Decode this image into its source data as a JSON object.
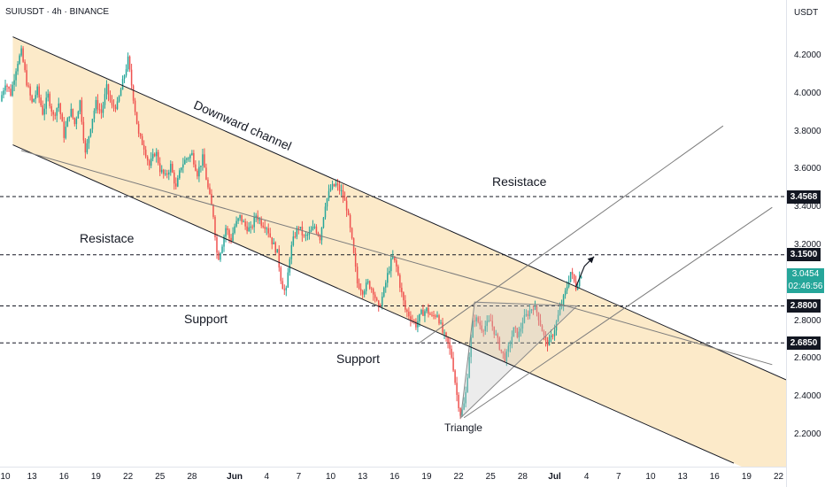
{
  "header": {
    "symbol_line": "SUIUSDT · 4h · BINANCE",
    "unit": "USDT"
  },
  "colors": {
    "up": "#26a69a",
    "down": "#ef5350",
    "channel_fill": "#fbe7c3",
    "level_tag_bg": "#131722",
    "price_tag_bg": "#26a69a"
  },
  "chart_data": {
    "type": "candlestick",
    "ylim": [
      2.08,
      4.42
    ],
    "yticks": [
      "4.2000",
      "4.0000",
      "3.8000",
      "3.6000",
      "3.4000",
      "3.2000",
      "3.0000",
      "2.8000",
      "2.6000",
      "2.4000",
      "2.2000"
    ],
    "ytick_values": [
      4.2,
      4.0,
      3.8,
      3.6,
      3.4,
      3.2,
      3.0,
      2.8,
      2.6,
      2.4,
      2.2
    ],
    "xticks": [
      {
        "label": "10",
        "d": 10
      },
      {
        "label": "13",
        "d": 13
      },
      {
        "label": "16",
        "d": 16
      },
      {
        "label": "19",
        "d": 19
      },
      {
        "label": "22",
        "d": 22
      },
      {
        "label": "25",
        "d": 25
      },
      {
        "label": "28",
        "d": 28
      },
      {
        "label": "Jun",
        "d": 32,
        "bold": true
      },
      {
        "label": "4",
        "d": 35
      },
      {
        "label": "7",
        "d": 38
      },
      {
        "label": "10",
        "d": 41
      },
      {
        "label": "13",
        "d": 44
      },
      {
        "label": "16",
        "d": 47
      },
      {
        "label": "19",
        "d": 50
      },
      {
        "label": "22",
        "d": 53
      },
      {
        "label": "25",
        "d": 56
      },
      {
        "label": "28",
        "d": 59
      },
      {
        "label": "Jul",
        "d": 62,
        "bold": true
      },
      {
        "label": "4",
        "d": 65
      },
      {
        "label": "7",
        "d": 68
      },
      {
        "label": "10",
        "d": 71
      },
      {
        "label": "13",
        "d": 74
      },
      {
        "label": "16",
        "d": 77
      },
      {
        "label": "19",
        "d": 80
      },
      {
        "label": "22",
        "d": 83
      }
    ],
    "xlim_days": [
      10,
      83.7
    ],
    "levels": [
      {
        "value": 3.4568,
        "label": "3.4568"
      },
      {
        "value": 3.15,
        "label": "3.1500"
      },
      {
        "value": 2.88,
        "label": "2.8800"
      },
      {
        "value": 2.685,
        "label": "2.6850"
      }
    ],
    "current_price": {
      "value": 3.0454,
      "label": "3.0454",
      "countdown": "02:46:56"
    },
    "price_path": [
      [
        10,
        3.96
      ],
      [
        10.5,
        4.06
      ],
      [
        11,
        4.0
      ],
      [
        11.6,
        4.16
      ],
      [
        12,
        4.22
      ],
      [
        12.5,
        4.06
      ],
      [
        13,
        3.95
      ],
      [
        13.5,
        4.02
      ],
      [
        14,
        3.9
      ],
      [
        14.5,
        3.99
      ],
      [
        15,
        3.88
      ],
      [
        15.5,
        3.95
      ],
      [
        16,
        3.78
      ],
      [
        16.6,
        3.92
      ],
      [
        17,
        3.84
      ],
      [
        17.5,
        3.96
      ],
      [
        18,
        3.68
      ],
      [
        18.6,
        3.86
      ],
      [
        19,
        3.95
      ],
      [
        19.5,
        3.9
      ],
      [
        20,
        4.03
      ],
      [
        20.5,
        3.93
      ],
      [
        21,
        3.94
      ],
      [
        21.5,
        4.06
      ],
      [
        22,
        4.18
      ],
      [
        22.5,
        3.98
      ],
      [
        23,
        3.78
      ],
      [
        23.5,
        3.72
      ],
      [
        24,
        3.62
      ],
      [
        24.6,
        3.7
      ],
      [
        25,
        3.6
      ],
      [
        25.5,
        3.56
      ],
      [
        26,
        3.62
      ],
      [
        26.5,
        3.5
      ],
      [
        27,
        3.62
      ],
      [
        27.5,
        3.66
      ],
      [
        28,
        3.68
      ],
      [
        28.5,
        3.58
      ],
      [
        29,
        3.66
      ],
      [
        29.5,
        3.5
      ],
      [
        30,
        3.36
      ],
      [
        30.4,
        3.12
      ],
      [
        30.8,
        3.2
      ],
      [
        31.2,
        3.3
      ],
      [
        31.6,
        3.22
      ],
      [
        32,
        3.3
      ],
      [
        32.5,
        3.35
      ],
      [
        33,
        3.3
      ],
      [
        33.5,
        3.28
      ],
      [
        34,
        3.36
      ],
      [
        34.5,
        3.32
      ],
      [
        35,
        3.3
      ],
      [
        35.5,
        3.22
      ],
      [
        36,
        3.16
      ],
      [
        36.4,
        3.0
      ],
      [
        36.8,
        2.94
      ],
      [
        37.2,
        3.16
      ],
      [
        37.6,
        3.25
      ],
      [
        38,
        3.3
      ],
      [
        38.5,
        3.24
      ],
      [
        39,
        3.26
      ],
      [
        39.5,
        3.3
      ],
      [
        40,
        3.24
      ],
      [
        40.5,
        3.42
      ],
      [
        41,
        3.5
      ],
      [
        41.5,
        3.52
      ],
      [
        42,
        3.48
      ],
      [
        42.5,
        3.4
      ],
      [
        43,
        3.22
      ],
      [
        43.5,
        3.0
      ],
      [
        44,
        2.96
      ],
      [
        44.5,
        3.0
      ],
      [
        45,
        2.96
      ],
      [
        45.5,
        2.86
      ],
      [
        46,
        2.96
      ],
      [
        46.4,
        3.06
      ],
      [
        46.8,
        3.14
      ],
      [
        47.2,
        3.08
      ],
      [
        47.6,
        2.96
      ],
      [
        48,
        2.86
      ],
      [
        48.5,
        2.82
      ],
      [
        49,
        2.78
      ],
      [
        49.5,
        2.84
      ],
      [
        50,
        2.86
      ],
      [
        50.5,
        2.82
      ],
      [
        51,
        2.84
      ],
      [
        51.5,
        2.74
      ],
      [
        52,
        2.68
      ],
      [
        52.4,
        2.6
      ],
      [
        52.8,
        2.42
      ],
      [
        53.2,
        2.3
      ],
      [
        53.6,
        2.38
      ],
      [
        54,
        2.62
      ],
      [
        54.4,
        2.82
      ],
      [
        54.8,
        2.8
      ],
      [
        55.2,
        2.76
      ],
      [
        55.6,
        2.78
      ],
      [
        56,
        2.8
      ],
      [
        56.5,
        2.72
      ],
      [
        57,
        2.64
      ],
      [
        57.4,
        2.6
      ],
      [
        57.8,
        2.68
      ],
      [
        58.2,
        2.76
      ],
      [
        58.6,
        2.72
      ],
      [
        59,
        2.8
      ],
      [
        59.5,
        2.84
      ],
      [
        60,
        2.88
      ],
      [
        60.4,
        2.84
      ],
      [
        60.8,
        2.76
      ],
      [
        61.2,
        2.68
      ],
      [
        61.6,
        2.7
      ],
      [
        62,
        2.76
      ],
      [
        62.5,
        2.86
      ],
      [
        63,
        2.95
      ],
      [
        63.5,
        3.06
      ],
      [
        64,
        2.98
      ],
      [
        64.5,
        3.05
      ]
    ],
    "forecast_path": [
      [
        64.0,
        2.98
      ],
      [
        64.8,
        3.09
      ],
      [
        65.7,
        3.14
      ]
    ],
    "channel": {
      "upper": [
        [
          11.2,
          4.3
        ],
        [
          83.7,
          2.49
        ]
      ],
      "lower": [
        [
          11.2,
          3.73
        ],
        [
          78.8,
          2.05
        ]
      ]
    },
    "diagonal": [
      [
        12.0,
        3.7
      ],
      [
        82.4,
        2.57
      ]
    ],
    "ascending_lines": [
      [
        [
          49.2,
          2.68
        ],
        [
          77.8,
          3.83
        ]
      ],
      [
        [
          53.5,
          2.29
        ],
        [
          82.4,
          3.4
        ]
      ]
    ],
    "triangle": [
      [
        53.2,
        2.29
      ],
      [
        54.5,
        2.9
      ],
      [
        64.1,
        2.88
      ]
    ]
  },
  "annotations": {
    "downward_channel": "Downward channel",
    "resistance_right": "Resistace",
    "resistance_left": "Resistace",
    "support_upper": "Support",
    "support_lower": "Support",
    "triangle": "Triangle"
  }
}
